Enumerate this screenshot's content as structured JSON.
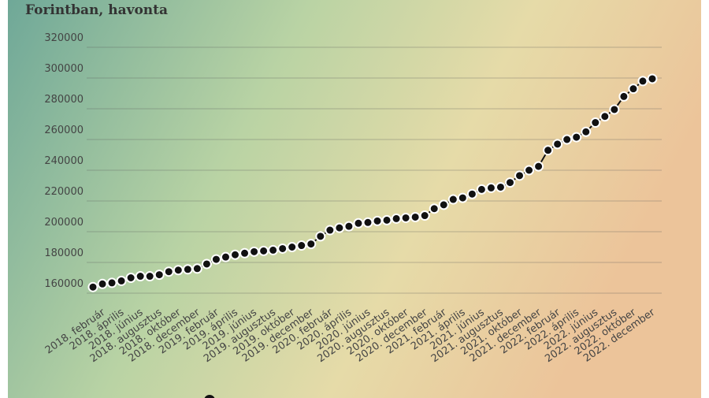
{
  "chart_data": {
    "type": "line",
    "subtitle": "Forintban, havonta",
    "categories": [
      null,
      "2018. február",
      null,
      "2018. április",
      null,
      "2018. június",
      null,
      "2018. augusztus",
      null,
      "2018. október",
      null,
      "2018. december",
      null,
      "2019. február",
      null,
      "2019. április",
      null,
      "2019. június",
      null,
      "2019. augusztus",
      null,
      "2019. október",
      null,
      "2019. december",
      null,
      "2020. február",
      null,
      "2020. április",
      null,
      "2020. június",
      null,
      "2020. augusztus",
      null,
      "2020. október",
      null,
      "2020. december",
      null,
      "2021. február",
      null,
      "2021. április",
      null,
      "2021. június",
      null,
      "2021. augusztus",
      null,
      "2021. október",
      null,
      "2021. december",
      null,
      "2022. február",
      null,
      "2022. április",
      null,
      "2022. június",
      null,
      "2022. augusztus",
      null,
      "2022. október",
      null,
      "2022. december"
    ],
    "series": [
      {
        "color": "#111111",
        "values": [
          164000,
          166000,
          166700,
          168000,
          170000,
          171000,
          171000,
          172000,
          174000,
          175000,
          175500,
          176000,
          179000,
          182000,
          183500,
          185000,
          186000,
          187000,
          187500,
          188000,
          189000,
          190000,
          191000,
          192000,
          197000,
          201000,
          202500,
          203500,
          205500,
          206000,
          207000,
          207500,
          208500,
          209000,
          209500,
          210500,
          215000,
          217500,
          221000,
          222000,
          224500,
          227500,
          228500,
          229000,
          232000,
          236500,
          240000,
          242500,
          253000,
          257000,
          260000,
          261500,
          265000,
          271000,
          275000,
          279500,
          288000,
          293000,
          298000,
          299500
        ]
      }
    ],
    "ylim": [
      150000,
      330000
    ],
    "yticks": [
      160000,
      180000,
      200000,
      220000,
      240000,
      260000,
      280000,
      300000,
      320000
    ],
    "grid": true
  }
}
